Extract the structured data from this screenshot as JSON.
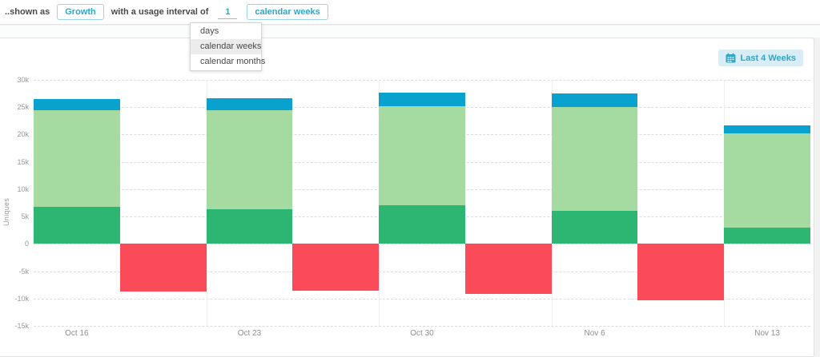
{
  "header": {
    "prefix_label": "..shown as",
    "shown_as_value": "Growth",
    "interval_label": "with a usage interval of",
    "interval_value": "1",
    "interval_unit": "calendar weeks",
    "dropdown": {
      "items": [
        "days",
        "calendar weeks",
        "calendar months"
      ],
      "selected": "calendar weeks"
    }
  },
  "toolbar": {
    "date_range_label": "Last 4 Weeks",
    "date_range_icon": "calendar-icon"
  },
  "colors": {
    "accent_teal": "#2fa7c7",
    "accent_teal_border": "#9bd4e5",
    "range_button_bg": "#d9edf6",
    "bar_dark_green": "#2db572",
    "bar_light_green": "#a5dba1",
    "bar_blue": "#09a2cf",
    "bar_red": "#fc4b58",
    "gridline": "#dcdcdc",
    "tick_text": "#999999"
  },
  "chart_data": {
    "type": "bar",
    "stacked": true,
    "ylabel": "Uniques",
    "categories": [
      "Oct 16",
      "Oct 23",
      "Oct 30",
      "Nov 6",
      "Nov 13"
    ],
    "series": [
      {
        "name": "dark-green-segment",
        "color": "#2db572",
        "values": [
          6800,
          6300,
          7000,
          6100,
          3000
        ]
      },
      {
        "name": "light-green-segment",
        "color": "#a5dba1",
        "values": [
          17700,
          18100,
          18200,
          18900,
          17200
        ]
      },
      {
        "name": "blue-segment",
        "color": "#09a2cf",
        "values": [
          2000,
          2300,
          2500,
          2500,
          1500
        ]
      },
      {
        "name": "red-negative-segment",
        "color": "#fc4b58",
        "values": [
          -8800,
          -8600,
          -9100,
          -10300,
          null
        ],
        "offset": "half-slot"
      }
    ],
    "ylim": [
      -15000,
      30000
    ],
    "yticks": [
      {
        "v": 30000,
        "label": "30k"
      },
      {
        "v": 25000,
        "label": "25k"
      },
      {
        "v": 20000,
        "label": "20k"
      },
      {
        "v": 15000,
        "label": "15k"
      },
      {
        "v": 10000,
        "label": "10k"
      },
      {
        "v": 5000,
        "label": "5k"
      },
      {
        "v": 0,
        "label": "0"
      },
      {
        "v": -5000,
        "label": "-5k"
      },
      {
        "v": -10000,
        "label": "-10k"
      },
      {
        "v": -15000,
        "label": "-15k"
      }
    ],
    "grid": "horizontal-dashed",
    "legend": "none"
  }
}
